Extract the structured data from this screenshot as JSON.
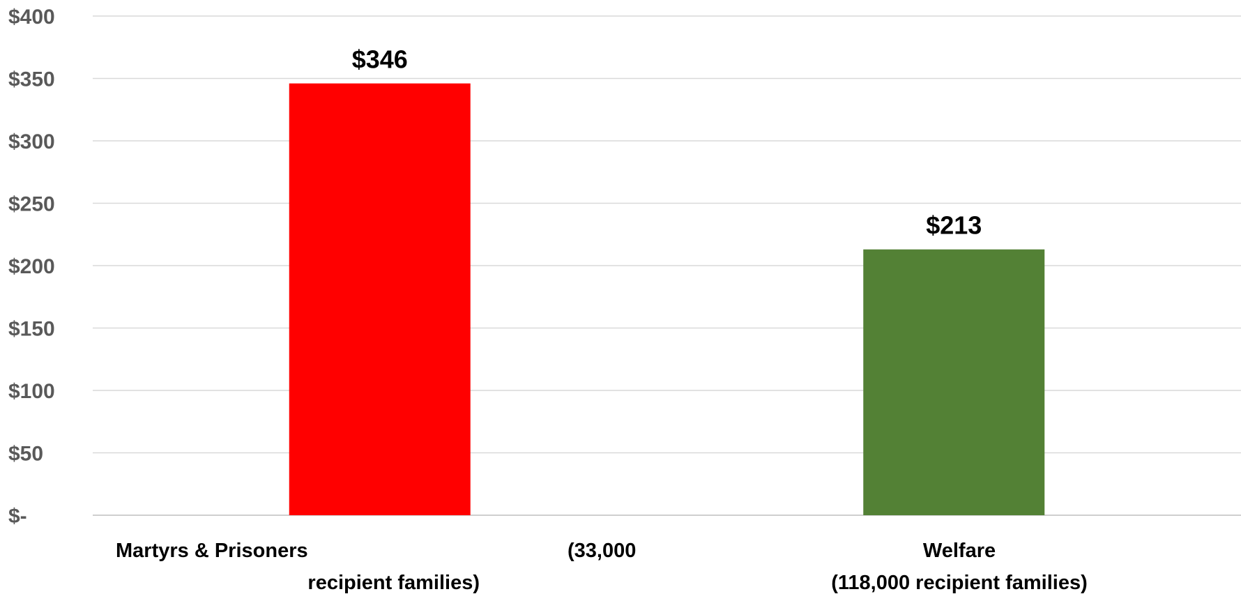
{
  "chart_data": {
    "type": "bar",
    "categories": [
      "Martyrs & Prisoners (33,000 recipient families)",
      "Welfare (118,000 recipient families)"
    ],
    "category_label_lines": [
      [
        "Martyrs & Prisoners",
        "(33,000",
        "recipient families)"
      ],
      [
        "Welfare",
        "(118,000 recipient families)"
      ]
    ],
    "values": [
      346,
      213
    ],
    "data_labels": [
      "$346",
      "$213"
    ],
    "bar_colors": [
      "#ff0000",
      "#538135"
    ],
    "ylim": [
      0,
      400
    ],
    "yticks": [
      0,
      50,
      100,
      150,
      200,
      250,
      300,
      350,
      400
    ],
    "ytick_labels": [
      "$-",
      "$50",
      "$100",
      "$150",
      "$200",
      "$250",
      "$300",
      "$350",
      "$400"
    ],
    "gridlines": true,
    "legend": "none",
    "title": "",
    "xlabel": "",
    "ylabel": ""
  }
}
